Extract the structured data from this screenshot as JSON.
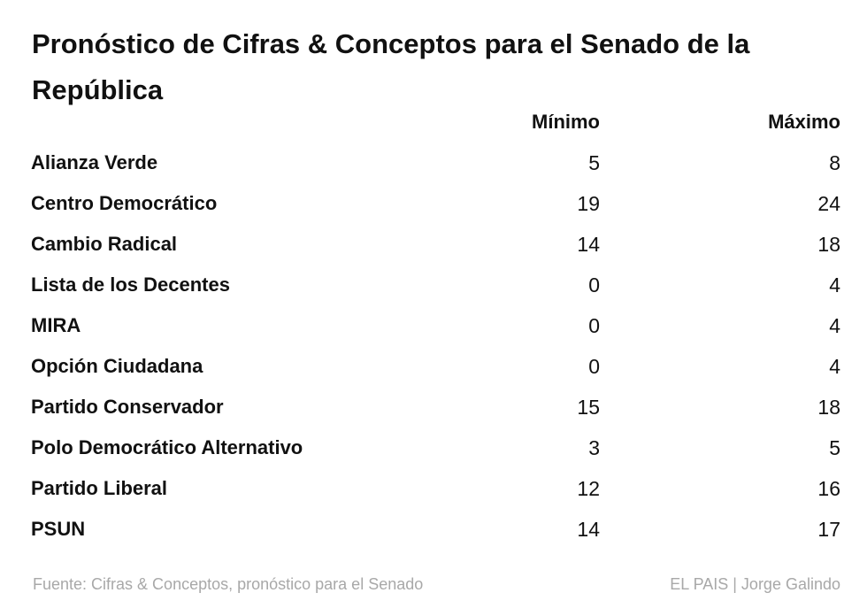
{
  "chart_data": {
    "type": "table",
    "title": "Pronóstico de Cifras & Conceptos para el Senado de la República",
    "columns": [
      "Mínimo",
      "Máximo"
    ],
    "rows": [
      {
        "name": "Alianza Verde",
        "min": "5",
        "max": "8"
      },
      {
        "name": "Centro Democrático",
        "min": "19",
        "max": "24"
      },
      {
        "name": "Cambio Radical",
        "min": "14",
        "max": "18"
      },
      {
        "name": "Lista de los Decentes",
        "min": "0",
        "max": "4"
      },
      {
        "name": "MIRA",
        "min": "0",
        "max": "4"
      },
      {
        "name": "Opción Ciudadana",
        "min": "0",
        "max": "4"
      },
      {
        "name": "Partido Conservador",
        "min": "15",
        "max": "18"
      },
      {
        "name": "Polo Democrático Alternativo",
        "min": "3",
        "max": "5"
      },
      {
        "name": "Partido Liberal",
        "min": "12",
        "max": "16"
      },
      {
        "name": "PSUN",
        "min": "14",
        "max": "17"
      }
    ],
    "source": "Fuente: Cifras & Conceptos, pronóstico para el Senado",
    "credit": "EL PAIS | Jorge Galindo"
  }
}
